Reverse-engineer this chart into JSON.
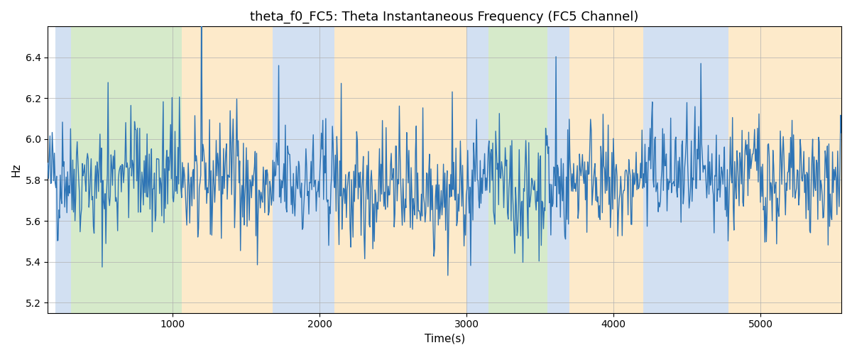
{
  "title": "theta_f0_FC5: Theta Instantaneous Frequency (FC5 Channel)",
  "xlabel": "Time(s)",
  "ylabel": "Hz",
  "xlim": [
    150,
    5550
  ],
  "ylim": [
    5.15,
    6.55
  ],
  "yticks": [
    5.2,
    5.4,
    5.6,
    5.8,
    6.0,
    6.2,
    6.4
  ],
  "xticks": [
    1000,
    2000,
    3000,
    4000,
    5000
  ],
  "line_color": "#2e74b5",
  "line_width": 1.0,
  "background_color": "#ffffff",
  "grid_color": "#b0b0b0",
  "title_fontsize": 13,
  "label_fontsize": 11,
  "figsize": [
    12,
    5
  ],
  "dpi": 100,
  "seed": 42,
  "n_points": 1080,
  "time_start": 150,
  "time_end": 5550,
  "mean_freq": 5.78,
  "std_freq": 0.13,
  "colored_regions": [
    {
      "xmin": 200,
      "xmax": 310,
      "color": "#adc8e8",
      "alpha": 0.55
    },
    {
      "xmin": 310,
      "xmax": 1060,
      "color": "#b5d9a0",
      "alpha": 0.55
    },
    {
      "xmin": 1060,
      "xmax": 1680,
      "color": "#fdd9a0",
      "alpha": 0.55
    },
    {
      "xmin": 1680,
      "xmax": 2100,
      "color": "#adc8e8",
      "alpha": 0.55
    },
    {
      "xmin": 2100,
      "xmax": 3000,
      "color": "#fdd9a0",
      "alpha": 0.55
    },
    {
      "xmin": 3000,
      "xmax": 3150,
      "color": "#adc8e8",
      "alpha": 0.55
    },
    {
      "xmin": 3150,
      "xmax": 3550,
      "color": "#b5d9a0",
      "alpha": 0.55
    },
    {
      "xmin": 3550,
      "xmax": 3700,
      "color": "#adc8e8",
      "alpha": 0.55
    },
    {
      "xmin": 3700,
      "xmax": 4200,
      "color": "#fdd9a0",
      "alpha": 0.55
    },
    {
      "xmin": 4200,
      "xmax": 4780,
      "color": "#adc8e8",
      "alpha": 0.55
    },
    {
      "xmin": 4780,
      "xmax": 5600,
      "color": "#fdd9a0",
      "alpha": 0.55
    }
  ]
}
